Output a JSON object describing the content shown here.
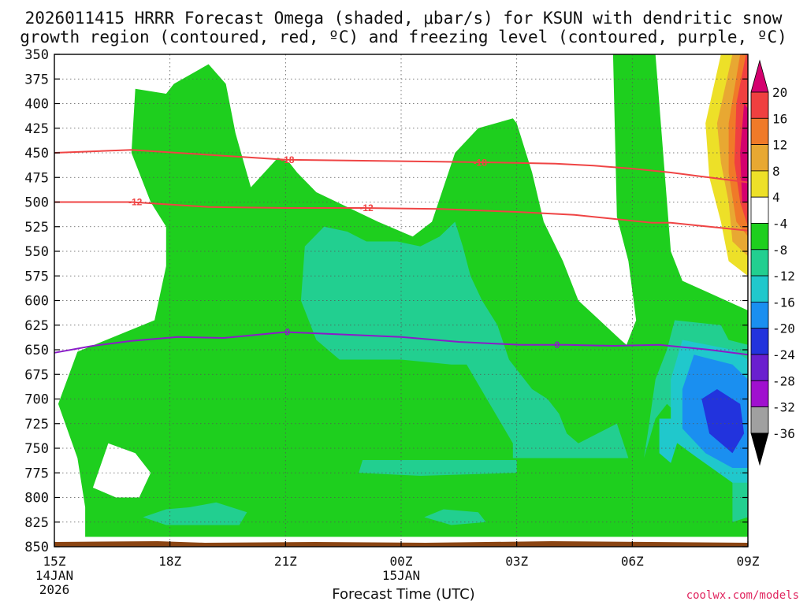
{
  "header": {
    "title_line1": "2026011415 HRRR Forecast Omega (shaded, μbar/s) for KSUN with dendritic snow",
    "title_line2": "growth region (contoured, red, ºC) and freezing level (contoured, purple, ºC)"
  },
  "footer": {
    "xlabel": "Forecast Time (UTC)",
    "credit": "coolwx.com/models"
  },
  "chart_data": {
    "type": "heatmap",
    "title": "2026011415 HRRR Forecast Omega (shaded, μbar/s) for KSUN with dendritic snow growth region (contoured, red, ºC) and freezing level (contoured, purple, ºC)",
    "xlabel": "Forecast Time (UTC)",
    "ylabel": "",
    "y_axis": {
      "inverted": true,
      "range": [
        350,
        850
      ],
      "ticks": [
        350,
        375,
        400,
        425,
        450,
        475,
        500,
        525,
        550,
        575,
        600,
        625,
        650,
        675,
        700,
        725,
        750,
        775,
        800,
        825,
        850
      ]
    },
    "x_axis": {
      "range": [
        15,
        33
      ],
      "ticks": [
        {
          "x": 15,
          "label": "15Z",
          "sub1": "14JAN",
          "sub2": "2026"
        },
        {
          "x": 18,
          "label": "18Z",
          "sub1": "",
          "sub2": ""
        },
        {
          "x": 21,
          "label": "21Z",
          "sub1": "",
          "sub2": ""
        },
        {
          "x": 24,
          "label": "00Z",
          "sub1": "15JAN",
          "sub2": ""
        },
        {
          "x": 27,
          "label": "03Z",
          "sub1": "",
          "sub2": ""
        },
        {
          "x": 30,
          "label": "06Z",
          "sub1": "",
          "sub2": ""
        },
        {
          "x": 33,
          "label": "09Z",
          "sub1": "",
          "sub2": ""
        }
      ]
    },
    "grid": true,
    "colorbar": {
      "labels": [
        "20",
        "16",
        "12",
        "8",
        "4",
        "-4",
        "-8",
        "-12",
        "-16",
        "-20",
        "-24",
        "-28",
        "-32",
        "-36"
      ],
      "colors": [
        "#d4006e",
        "#f04040",
        "#f07a28",
        "#e8a832",
        "#ede028",
        "#ffffff",
        "#1ecf1e",
        "#22cf90",
        "#20c8cc",
        "#1a8ff0",
        "#2233dd",
        "#6a1fcf",
        "#a010cf",
        "#a0a0a0",
        "#000000"
      ]
    },
    "shaded_regions": [
      {
        "class": "-8",
        "color": "#1ecf1e",
        "polygon": [
          [
            15.6,
            652
          ],
          [
            15.1,
            705
          ],
          [
            15.6,
            760
          ],
          [
            15.8,
            810
          ],
          [
            15.8,
            840
          ],
          [
            33,
            840
          ],
          [
            33,
            610
          ],
          [
            31.3,
            580
          ],
          [
            31,
            550
          ],
          [
            30.6,
            350
          ],
          [
            29.5,
            350
          ],
          [
            29.6,
            515
          ],
          [
            29.9,
            560
          ],
          [
            30.1,
            620
          ],
          [
            29.85,
            645
          ],
          [
            29.7,
            640
          ],
          [
            28.6,
            600
          ],
          [
            28.2,
            560
          ],
          [
            27.7,
            520
          ],
          [
            27.4,
            470
          ],
          [
            27,
            420
          ],
          [
            26.9,
            415
          ],
          [
            26,
            425
          ],
          [
            25.4,
            450
          ],
          [
            24.8,
            520
          ],
          [
            24.3,
            535
          ],
          [
            23.4,
            520
          ],
          [
            21.8,
            490
          ],
          [
            21.3,
            470
          ],
          [
            21.1,
            460
          ],
          [
            20.8,
            455
          ],
          [
            20.1,
            485
          ],
          [
            19.7,
            430
          ],
          [
            19.45,
            380
          ],
          [
            19,
            360
          ],
          [
            18.1,
            380
          ],
          [
            17.9,
            390
          ],
          [
            17.1,
            385
          ],
          [
            17,
            450
          ],
          [
            17.5,
            500
          ],
          [
            17.9,
            525
          ],
          [
            17.9,
            565
          ],
          [
            17.6,
            620
          ]
        ]
      },
      {
        "class": "-4",
        "color": "#ffffff",
        "polygon": [
          [
            16.4,
            745
          ],
          [
            16.0,
            790
          ],
          [
            16.6,
            800
          ],
          [
            17.2,
            800
          ],
          [
            17.5,
            775
          ],
          [
            17.1,
            755
          ]
        ]
      },
      {
        "class": "-12",
        "color": "#22cf90",
        "polygon": [
          [
            22,
            525
          ],
          [
            21.5,
            545
          ],
          [
            21.4,
            600
          ],
          [
            21.8,
            640
          ],
          [
            22.4,
            660
          ],
          [
            24,
            660
          ],
          [
            25.3,
            665
          ],
          [
            25.7,
            665
          ],
          [
            26.9,
            745
          ],
          [
            26.9,
            760
          ],
          [
            30.3,
            760
          ],
          [
            30.4,
            735
          ],
          [
            30.6,
            680
          ],
          [
            30.9,
            650
          ],
          [
            31.1,
            620
          ],
          [
            32.3,
            625
          ],
          [
            32.5,
            640
          ],
          [
            33,
            645
          ],
          [
            33,
            820
          ],
          [
            32.6,
            825
          ],
          [
            32.6,
            760
          ],
          [
            31.7,
            745
          ],
          [
            31.3,
            720
          ],
          [
            30.9,
            705
          ],
          [
            30.6,
            720
          ],
          [
            30.3,
            760
          ],
          [
            29.9,
            760
          ],
          [
            29.6,
            725
          ],
          [
            28.6,
            745
          ],
          [
            28.3,
            735
          ],
          [
            28.1,
            715
          ],
          [
            27.8,
            700
          ],
          [
            27.4,
            690
          ],
          [
            26.8,
            660
          ],
          [
            26.5,
            625
          ],
          [
            26.1,
            600
          ],
          [
            25.8,
            575
          ],
          [
            25.6,
            545
          ],
          [
            25.4,
            520
          ],
          [
            25.0,
            535
          ],
          [
            24.5,
            545
          ],
          [
            23.9,
            540
          ],
          [
            23.1,
            540
          ],
          [
            22.6,
            530
          ]
        ]
      },
      {
        "class": "-12",
        "color": "#22cf90",
        "polygon": [
          [
            17.9,
            812
          ],
          [
            17.3,
            820
          ],
          [
            17.9,
            828
          ],
          [
            19.8,
            828
          ],
          [
            20,
            815
          ],
          [
            19.2,
            805
          ],
          [
            18.5,
            810
          ]
        ]
      },
      {
        "class": "-12",
        "color": "#22cf90",
        "polygon": [
          [
            25.1,
            812
          ],
          [
            24.6,
            820
          ],
          [
            25.3,
            828
          ],
          [
            26.2,
            825
          ],
          [
            26.0,
            815
          ]
        ]
      },
      {
        "class": "-12",
        "color": "#22cf90",
        "polygon": [
          [
            23.0,
            762
          ],
          [
            22.9,
            775
          ],
          [
            24.5,
            778
          ],
          [
            27.0,
            775
          ],
          [
            27.0,
            762
          ]
        ]
      },
      {
        "class": "-16",
        "color": "#20c8cc",
        "polygon": [
          [
            30.7,
            720
          ],
          [
            30.7,
            755
          ],
          [
            31.0,
            765
          ],
          [
            31.2,
            740
          ],
          [
            31.0,
            720
          ]
        ]
      },
      {
        "class": "-16",
        "color": "#20c8cc",
        "polygon": [
          [
            31.3,
            640
          ],
          [
            31.0,
            680
          ],
          [
            31.0,
            740
          ],
          [
            31.7,
            760
          ],
          [
            32.6,
            785
          ],
          [
            33,
            785
          ],
          [
            33,
            660
          ],
          [
            32.6,
            650
          ]
        ]
      },
      {
        "class": "-20",
        "color": "#1a8ff0",
        "polygon": [
          [
            31.6,
            655
          ],
          [
            31.3,
            690
          ],
          [
            31.3,
            730
          ],
          [
            31.9,
            755
          ],
          [
            32.6,
            770
          ],
          [
            33,
            770
          ],
          [
            33,
            680
          ],
          [
            32.6,
            665
          ]
        ]
      },
      {
        "class": "-24",
        "color": "#2233dd",
        "polygon": [
          [
            32.2,
            690
          ],
          [
            31.8,
            700
          ],
          [
            32.0,
            735
          ],
          [
            32.6,
            755
          ],
          [
            32.9,
            735
          ],
          [
            32.8,
            705
          ]
        ]
      },
      {
        "class": "4",
        "color": "#ede028",
        "polygon": [
          [
            32.3,
            350
          ],
          [
            33,
            350
          ],
          [
            33,
            575
          ],
          [
            32.5,
            560
          ],
          [
            32.3,
            520
          ],
          [
            32.0,
            475
          ],
          [
            31.9,
            420
          ]
        ]
      },
      {
        "class": "8",
        "color": "#e8a832",
        "polygon": [
          [
            32.6,
            350
          ],
          [
            33,
            350
          ],
          [
            33,
            555
          ],
          [
            32.6,
            540
          ],
          [
            32.5,
            500
          ],
          [
            32.3,
            460
          ],
          [
            32.2,
            420
          ]
        ]
      },
      {
        "class": "12",
        "color": "#f07a28",
        "polygon": [
          [
            32.8,
            350
          ],
          [
            33,
            350
          ],
          [
            33,
            535
          ],
          [
            32.7,
            520
          ],
          [
            32.5,
            470
          ],
          [
            32.5,
            420
          ]
        ]
      },
      {
        "class": "16",
        "color": "#f04040",
        "polygon": [
          [
            32.95,
            350
          ],
          [
            33,
            350
          ],
          [
            33,
            525
          ],
          [
            32.8,
            500
          ],
          [
            32.65,
            460
          ],
          [
            32.7,
            400
          ]
        ]
      },
      {
        "class": "20",
        "color": "#d4006e",
        "polygon": [
          [
            32.9,
            400
          ],
          [
            32.8,
            450
          ],
          [
            32.85,
            500
          ],
          [
            33,
            500
          ],
          [
            33,
            405
          ]
        ]
      }
    ],
    "series": [
      {
        "name": "-18",
        "color": "#ef4444",
        "type": "contour",
        "x": [
          15,
          17,
          19,
          21,
          23,
          25,
          26.7,
          28,
          29,
          30,
          31,
          32,
          33
        ],
        "y": [
          450,
          447,
          452,
          457,
          458,
          459,
          460,
          461,
          463,
          466,
          470,
          475,
          480
        ],
        "labels": [
          {
            "x": 21.05,
            "y": 457
          },
          {
            "x": 26.05,
            "y": 460
          }
        ]
      },
      {
        "name": "-12",
        "color": "#ef4444",
        "type": "contour",
        "x": [
          15,
          17,
          19,
          21,
          23,
          25,
          27,
          28.5,
          29.5,
          30.5,
          31,
          32,
          33
        ],
        "y": [
          500,
          500,
          505,
          506,
          506,
          507,
          510,
          513,
          517,
          521,
          521,
          525,
          529
        ],
        "labels": [
          {
            "x": 17.1,
            "y": 500
          },
          {
            "x": 23.1,
            "y": 506
          }
        ]
      },
      {
        "name": "0",
        "color": "#8a1cc8",
        "type": "contour",
        "x": [
          15,
          16,
          17,
          18.2,
          19.4,
          21,
          22.2,
          24,
          25.5,
          27.1,
          28.3,
          29.5,
          30.7,
          32,
          33
        ],
        "y": [
          653,
          646,
          641,
          637,
          638,
          632,
          634,
          637,
          642,
          645,
          645,
          646,
          645,
          650,
          655
        ],
        "labels": [
          {
            "x": 21.05,
            "y": 632
          },
          {
            "x": 28.05,
            "y": 645
          }
        ]
      }
    ]
  }
}
